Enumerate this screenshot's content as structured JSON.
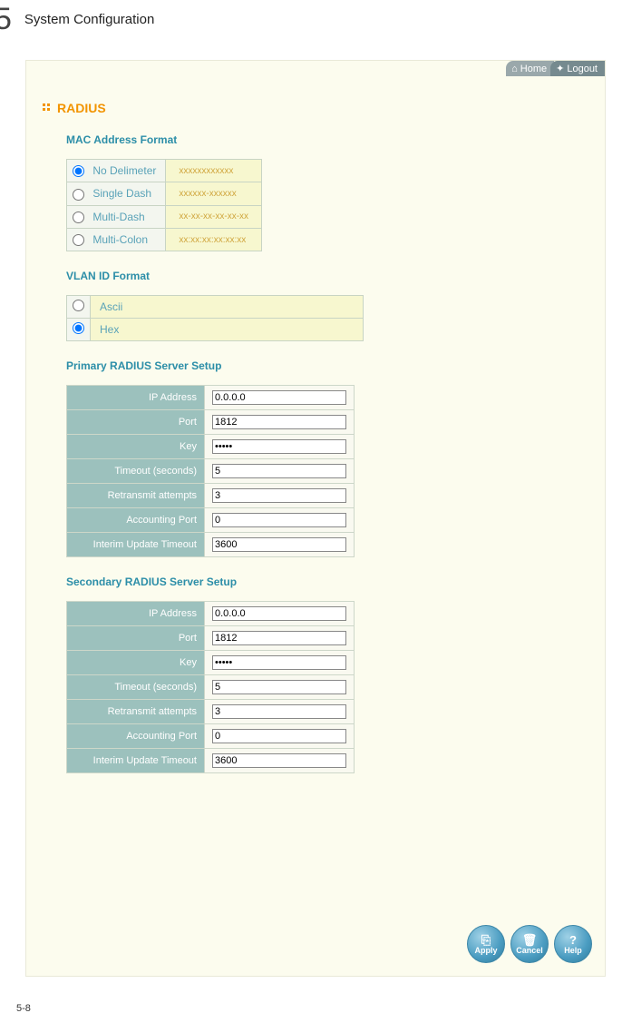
{
  "chapter": {
    "number": "5",
    "title": "System Configuration"
  },
  "topnav": {
    "home": "Home",
    "logout": "Logout"
  },
  "page": {
    "radius_header": "RADIUS",
    "mac_format_header": "MAC Address Format",
    "mac_options": [
      {
        "label": "No Delimeter",
        "example": "xxxxxxxxxxxx",
        "checked": true
      },
      {
        "label": "Single Dash",
        "example": "xxxxxx-xxxxxx",
        "checked": false
      },
      {
        "label": "Multi-Dash",
        "example": "xx-xx-xx-xx-xx-xx",
        "checked": false
      },
      {
        "label": "Multi-Colon",
        "example": "xx:xx:xx:xx:xx:xx",
        "checked": false
      }
    ],
    "vlan_header": "VLAN ID Format",
    "vlan_options": [
      {
        "label": "Ascii",
        "checked": false
      },
      {
        "label": "Hex",
        "checked": true
      }
    ],
    "primary_header": "Primary RADIUS Server Setup",
    "secondary_header": "Secondary RADIUS Server Setup",
    "server_fields": [
      {
        "label": "IP Address",
        "value": "0.0.0.0",
        "type": "text"
      },
      {
        "label": "Port",
        "value": "1812",
        "type": "text"
      },
      {
        "label": "Key",
        "value": "*****",
        "type": "password"
      },
      {
        "label": "Timeout (seconds)",
        "value": "5",
        "type": "text"
      },
      {
        "label": "Retransmit attempts",
        "value": "3",
        "type": "text"
      },
      {
        "label": "Accounting Port",
        "value": "0",
        "type": "text"
      },
      {
        "label": "Interim Update Timeout",
        "value": "3600",
        "type": "text"
      }
    ],
    "buttons": {
      "apply": "Apply",
      "cancel": "Cancel",
      "help": "Help"
    }
  },
  "footer": {
    "pagenum": "5-8"
  },
  "colors": {
    "panel_bg": "#fcfcee",
    "accent_orange": "#f29400",
    "accent_teal": "#2c8ea8",
    "field_label_bg": "#9cc1bd"
  }
}
